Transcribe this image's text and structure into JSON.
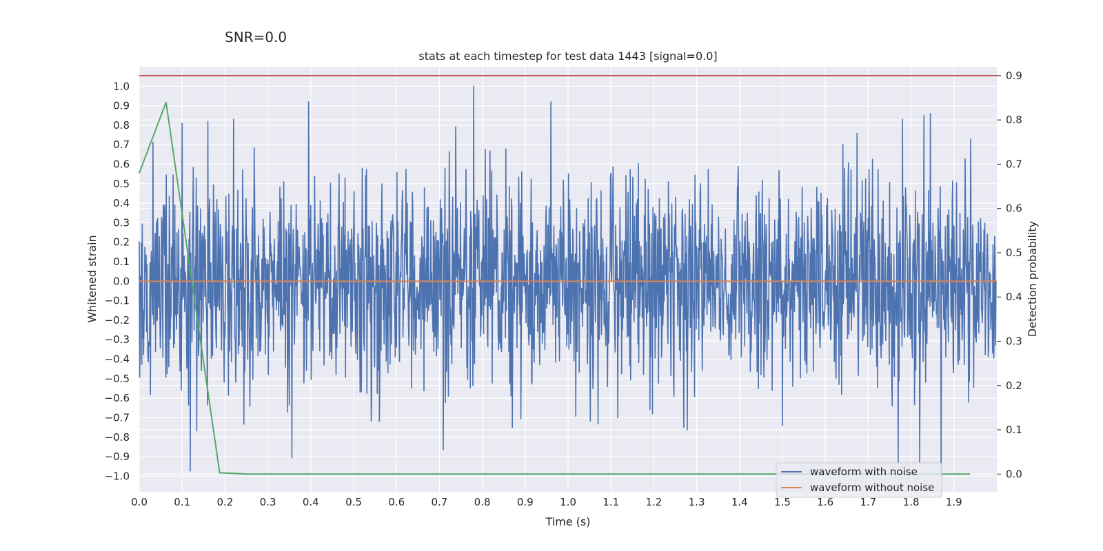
{
  "suptitle": "SNR=0.0",
  "chart_data": {
    "type": "line",
    "title": "stats at each timestep for test data 1443 [signal=0.0]",
    "xlabel": "Time (s)",
    "ylabel": "Whitened strain",
    "y2label": "Detection probability",
    "xlim": [
      0.0,
      2.0
    ],
    "ylim": [
      -1.08,
      1.1
    ],
    "y2lim": [
      -0.04,
      0.92
    ],
    "xticks": [
      0.0,
      0.1,
      0.2,
      0.3,
      0.4,
      0.5,
      0.6,
      0.7,
      0.8,
      0.9,
      1.0,
      1.1,
      1.2,
      1.3,
      1.4,
      1.5,
      1.6,
      1.7,
      1.8,
      1.9
    ],
    "yticks": [
      -1.0,
      -0.9,
      -0.8,
      -0.7,
      -0.6,
      -0.5,
      -0.4,
      -0.3,
      -0.2,
      -0.1,
      0.0,
      0.1,
      0.2,
      0.3,
      0.4,
      0.5,
      0.6,
      0.7,
      0.8,
      0.9,
      1.0
    ],
    "y2ticks": [
      0.0,
      0.1,
      0.2,
      0.3,
      0.4,
      0.5,
      0.6,
      0.7,
      0.8,
      0.9
    ],
    "grid": true,
    "legend_position": "lower-right",
    "colors": {
      "with_noise": "#4c72b0",
      "without_noise": "#dd8452",
      "probability": "#55a868",
      "threshold": "#c44e52",
      "background": "#eaeaf2",
      "grid": "#ffffff"
    },
    "series": [
      {
        "name": "waveform with noise",
        "axis": "left",
        "sample_count": 2000,
        "approx_peaks": [
          {
            "x": 0.78,
            "y": 1.0
          },
          {
            "x": 0.395,
            "y": 0.92
          },
          {
            "x": 0.96,
            "y": 0.92
          },
          {
            "x": 1.845,
            "y": 0.86
          },
          {
            "x": 1.83,
            "y": 0.85
          },
          {
            "x": 0.1,
            "y": 0.81
          },
          {
            "x": 0.16,
            "y": 0.82
          },
          {
            "x": 0.22,
            "y": 0.83
          },
          {
            "x": 1.78,
            "y": 0.83
          },
          {
            "x": 1.87,
            "y": -1.0
          },
          {
            "x": 1.77,
            "y": -0.93
          },
          {
            "x": 1.82,
            "y": -0.93
          },
          {
            "x": 0.87,
            "y": -0.75
          },
          {
            "x": 1.27,
            "y": -0.75
          },
          {
            "x": 1.5,
            "y": -0.74
          }
        ]
      },
      {
        "name": "waveform without noise",
        "axis": "left",
        "x": [
          0.0,
          2.0
        ],
        "y": [
          0.0,
          0.0
        ]
      },
      {
        "axis": "right",
        "x": [
          0.0,
          0.0625,
          0.125,
          0.1875,
          0.25,
          0.5,
          0.75,
          1.0,
          1.25,
          1.5,
          1.75,
          1.9375
        ],
        "y": [
          0.68,
          0.84,
          0.42,
          0.003,
          0.0,
          0.0,
          0.0,
          0.0,
          0.0,
          0.0,
          0.0,
          0.0
        ]
      },
      {
        "axis": "right",
        "x": [
          0.0,
          2.0
        ],
        "y": [
          0.9,
          0.9
        ]
      }
    ]
  }
}
